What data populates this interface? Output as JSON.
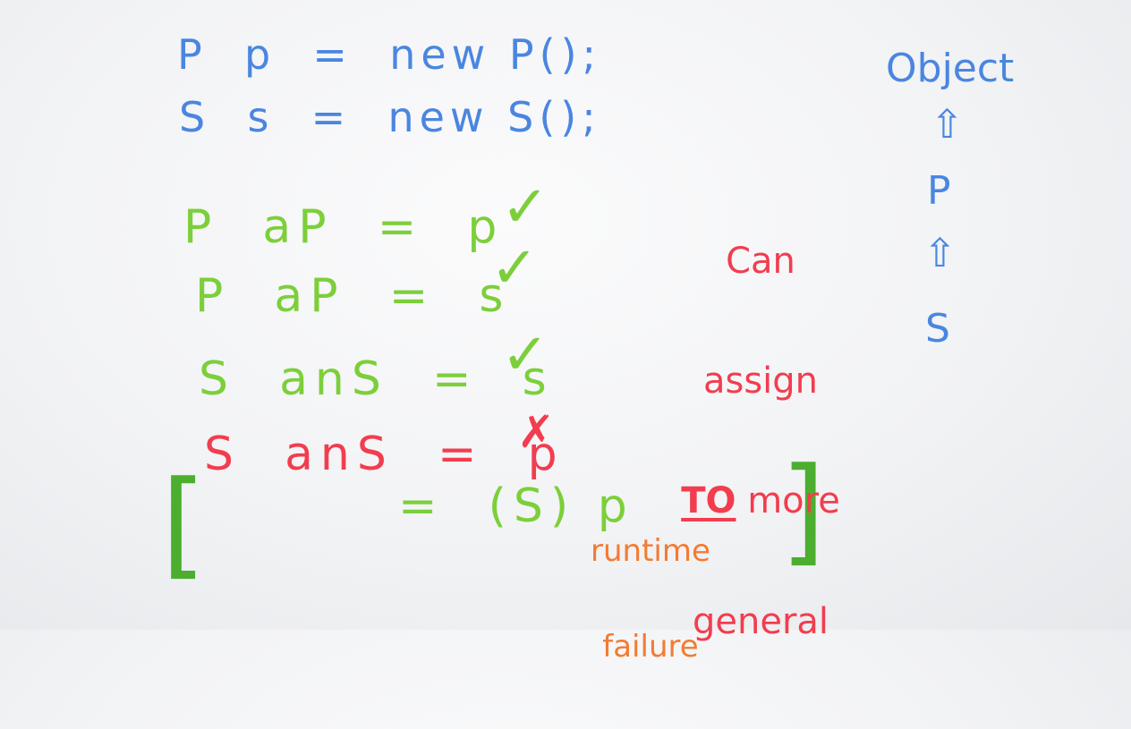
{
  "declarations": [
    "P  p  =  new P();",
    "S  s  =  new S();"
  ],
  "assignments": [
    {
      "text": "P  aP  =  p",
      "mark": "✓",
      "status": "ok"
    },
    {
      "text": "P  aP  =  s",
      "mark": "✓",
      "status": "ok"
    },
    {
      "text": "S  anS  =  s",
      "mark": "✓",
      "status": "ok"
    },
    {
      "text": "S  anS  =  p",
      "mark": "✗",
      "status": "error"
    }
  ],
  "cast": {
    "text": "=  (S) p",
    "failure_line1": "runtime",
    "failure_line2": "failure",
    "open_bracket": "[",
    "close_bracket": "]"
  },
  "note": {
    "line1": "Can",
    "line2": "assign",
    "line3_em": "TO",
    "line3_rest": " more",
    "line4": "general"
  },
  "hierarchy": {
    "top": "Object",
    "arrow": "⇧",
    "middle": "P",
    "bottom": "S"
  },
  "colors": {
    "blue": "#4a86e0",
    "green": "#7ccf3a",
    "red": "#f23d4f",
    "orange": "#f47b32",
    "board": "#f5f6f8"
  }
}
